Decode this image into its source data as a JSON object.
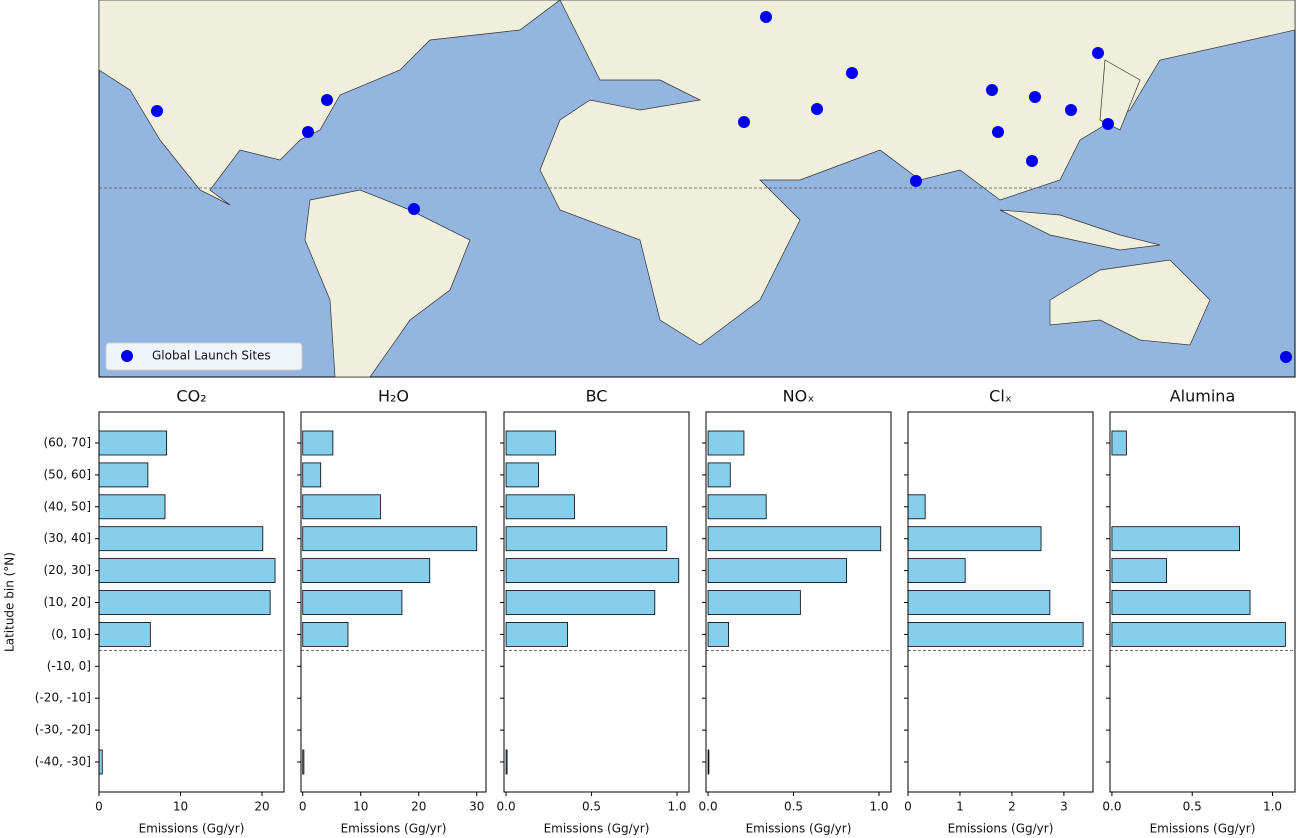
{
  "map": {
    "legend": "Global Launch Sites"
  },
  "chart_data": [
    {
      "type": "bar",
      "orientation": "horizontal",
      "title": "CO₂",
      "xlabel": "Emissions (Gg/yr)",
      "ylabel": "Latitude bin (°N)",
      "color": "#87ceeb",
      "categories": [
        "(60, 70]",
        "(50, 60]",
        "(40, 50]",
        "(30, 40]",
        "(20, 30]",
        "(10, 20]",
        "(0, 10]",
        "(-10, 0]",
        "(-20, -10]",
        "(-30, -20]",
        "(-40, -30]"
      ],
      "values": [
        8.3,
        6.0,
        8.1,
        20.1,
        21.6,
        21.0,
        6.3,
        0,
        0,
        0,
        0.4
      ],
      "xlim": [
        0,
        22.7
      ],
      "xticks": [
        0,
        10,
        20
      ]
    },
    {
      "type": "bar",
      "orientation": "horizontal",
      "title": "H₂O",
      "xlabel": "Emissions (Gg/yr)",
      "color": "#87ceeb",
      "values": [
        5.2,
        3.1,
        13.4,
        30.0,
        21.9,
        17.1,
        7.8,
        0,
        0,
        0,
        0.2
      ],
      "xlim": [
        -0.3,
        31.6
      ],
      "xticks": [
        0,
        10,
        20,
        30
      ]
    },
    {
      "type": "bar",
      "orientation": "horizontal",
      "title": "BC",
      "xlabel": "Emissions (Gg/yr)",
      "color": "#87ceeb",
      "values": [
        0.29,
        0.19,
        0.4,
        0.94,
        1.01,
        0.87,
        0.36,
        0,
        0,
        0,
        0.006
      ],
      "xlim": [
        -0.012,
        1.07
      ],
      "xticks": [
        {
          "value": 0,
          "label": "0.0"
        },
        0.5,
        {
          "value": 1,
          "label": "1.0"
        }
      ]
    },
    {
      "type": "bar",
      "orientation": "horizontal",
      "title": "NOₓ",
      "xlabel": "Emissions (Gg/yr)",
      "color": "#87ceeb",
      "values": [
        0.21,
        0.13,
        0.34,
        1.01,
        0.81,
        0.54,
        0.12,
        0,
        0,
        0,
        0.005
      ],
      "xlim": [
        -0.012,
        1.07
      ],
      "xticks": [
        {
          "value": 0,
          "label": "0.0"
        },
        0.5,
        {
          "value": 1,
          "label": "1.0"
        }
      ]
    },
    {
      "type": "bar",
      "orientation": "horizontal",
      "title": "Clₓ",
      "xlabel": "Emissions (Gg/yr)",
      "color": "#87ceeb",
      "values": [
        0,
        0,
        0.33,
        2.56,
        1.1,
        2.73,
        3.37,
        0,
        0,
        0,
        0
      ],
      "xlim": [
        0,
        3.56
      ],
      "xticks": [
        0,
        1,
        2,
        3
      ]
    },
    {
      "type": "bar",
      "orientation": "horizontal",
      "title": "Alumina",
      "xlabel": "Emissions (Gg/yr)",
      "color": "#87ceeb",
      "values": [
        0.09,
        0,
        0,
        0.795,
        0.34,
        0.86,
        1.08,
        0,
        0,
        0,
        0
      ],
      "xlim": [
        -0.012,
        1.14
      ],
      "xticks": [
        {
          "value": 0,
          "label": "0.0"
        },
        0.5,
        {
          "value": 1,
          "label": "1.0"
        }
      ]
    }
  ]
}
